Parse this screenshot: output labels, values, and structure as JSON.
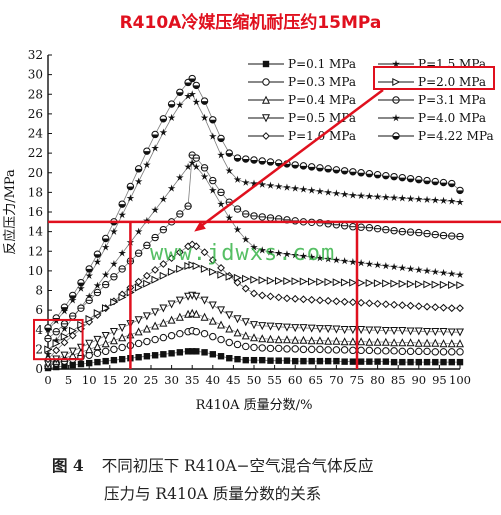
{
  "page": {
    "title": "R410A冷媒压缩机耐压约15MPa",
    "watermark": "www.jdwxs.com",
    "caption_number": "图 4",
    "caption_line1": "不同初压下 R410A−空气混合气体反应",
    "caption_line2": "压力与 R410A 质量分数的关系"
  },
  "colors": {
    "annotation": "#e0101e",
    "watermark": "#39b54a",
    "series": "#111111"
  },
  "chart_data": {
    "type": "line",
    "xlabel": "R410A 质量分数/%",
    "ylabel": "反应压力/MPa",
    "xlim": [
      0,
      100
    ],
    "ylim": [
      0,
      32
    ],
    "xticks": [
      0,
      5,
      10,
      15,
      20,
      25,
      30,
      35,
      40,
      45,
      50,
      55,
      60,
      65,
      70,
      75,
      80,
      85,
      90,
      95,
      100
    ],
    "yticks": [
      0,
      2,
      4,
      6,
      8,
      10,
      12,
      14,
      16,
      18,
      20,
      22,
      24,
      26,
      28,
      30,
      32
    ],
    "x": [
      0,
      2,
      4,
      6,
      8,
      10,
      12,
      14,
      16,
      18,
      20,
      22,
      24,
      26,
      28,
      30,
      32,
      34,
      35,
      36,
      38,
      40,
      42,
      44,
      46,
      48,
      50,
      52,
      54,
      56,
      58,
      60,
      62,
      64,
      66,
      68,
      70,
      72,
      74,
      76,
      78,
      80,
      82,
      84,
      86,
      88,
      90,
      92,
      94,
      96,
      98,
      100
    ],
    "series": [
      {
        "name": "P=0.1 MPa",
        "marker": "square-filled",
        "values": [
          0.1,
          0.2,
          0.3,
          0.4,
          0.5,
          0.6,
          0.7,
          0.8,
          0.9,
          1.0,
          1.1,
          1.2,
          1.3,
          1.4,
          1.5,
          1.6,
          1.7,
          1.8,
          1.8,
          1.8,
          1.7,
          1.5,
          1.3,
          1.1,
          1.0,
          0.9,
          0.9,
          0.9,
          0.85,
          0.85,
          0.85,
          0.8,
          0.8,
          0.8,
          0.8,
          0.8,
          0.8,
          0.75,
          0.75,
          0.75,
          0.75,
          0.75,
          0.75,
          0.7,
          0.7,
          0.7,
          0.7,
          0.7,
          0.7,
          0.7,
          0.7,
          0.7
        ]
      },
      {
        "name": "P=0.3 MPa",
        "marker": "circle-open",
        "values": [
          0.3,
          0.6,
          0.8,
          1.0,
          1.2,
          1.4,
          1.6,
          1.8,
          2.0,
          2.2,
          2.4,
          2.6,
          2.8,
          3.0,
          3.2,
          3.4,
          3.6,
          3.8,
          3.9,
          3.8,
          3.6,
          3.3,
          3.0,
          2.7,
          2.5,
          2.3,
          2.2,
          2.15,
          2.1,
          2.1,
          2.05,
          2.05,
          2.0,
          2.0,
          2.0,
          1.95,
          1.95,
          1.95,
          1.9,
          1.9,
          1.9,
          1.85,
          1.85,
          1.85,
          1.8,
          1.8,
          1.8,
          1.8,
          1.75,
          1.75,
          1.75,
          1.75
        ]
      },
      {
        "name": "P=0.4 MPa",
        "marker": "triangle-open",
        "values": [
          0.4,
          0.8,
          1.1,
          1.4,
          1.7,
          2.0,
          2.3,
          2.6,
          2.9,
          3.2,
          3.5,
          3.8,
          4.1,
          4.4,
          4.7,
          5.0,
          5.3,
          5.6,
          5.7,
          5.6,
          5.3,
          4.9,
          4.5,
          4.1,
          3.7,
          3.4,
          3.2,
          3.1,
          3.05,
          3.0,
          3.0,
          2.95,
          2.95,
          2.9,
          2.9,
          2.85,
          2.85,
          2.8,
          2.8,
          2.8,
          2.75,
          2.75,
          2.75,
          2.7,
          2.7,
          2.7,
          2.65,
          2.65,
          2.65,
          2.6,
          2.6,
          2.6
        ]
      },
      {
        "name": "P=0.5 MPa",
        "marker": "triangle-down-open",
        "values": [
          0.5,
          1.0,
          1.4,
          1.8,
          2.2,
          2.6,
          3.0,
          3.4,
          3.8,
          4.2,
          4.6,
          5.0,
          5.4,
          5.8,
          6.2,
          6.6,
          7.0,
          7.4,
          7.5,
          7.4,
          7.0,
          6.5,
          6.0,
          5.5,
          5.1,
          4.8,
          4.5,
          4.4,
          4.35,
          4.3,
          4.25,
          4.2,
          4.2,
          4.15,
          4.1,
          4.1,
          4.05,
          4.0,
          4.0,
          4.0,
          3.95,
          3.95,
          3.9,
          3.9,
          3.9,
          3.85,
          3.85,
          3.8,
          3.8,
          3.8,
          3.75,
          3.75
        ]
      },
      {
        "name": "P=1.0 MPa",
        "marker": "diamond-open",
        "values": [
          1.0,
          1.9,
          2.7,
          3.4,
          4.1,
          4.8,
          5.5,
          6.2,
          6.9,
          7.6,
          8.3,
          8.9,
          9.5,
          10.1,
          10.7,
          11.3,
          11.9,
          12.5,
          12.7,
          12.5,
          11.9,
          11.1,
          10.3,
          9.5,
          8.8,
          8.2,
          7.7,
          7.5,
          7.4,
          7.3,
          7.2,
          7.15,
          7.1,
          7.05,
          7.0,
          6.95,
          6.9,
          6.85,
          6.8,
          6.75,
          6.7,
          6.65,
          6.6,
          6.55,
          6.5,
          6.45,
          6.4,
          6.35,
          6.3,
          6.25,
          6.2,
          6.2
        ]
      },
      {
        "name": "P=1.5 MPa",
        "marker": "star-filled",
        "values": [
          1.5,
          2.9,
          4.1,
          5.2,
          6.3,
          7.4,
          8.5,
          9.6,
          10.7,
          11.8,
          12.9,
          14.0,
          15.1,
          16.2,
          17.3,
          18.4,
          19.5,
          20.6,
          21.0,
          20.6,
          19.6,
          18.2,
          16.8,
          15.4,
          14.2,
          13.2,
          12.4,
          12.1,
          11.9,
          11.8,
          11.7,
          11.6,
          11.5,
          11.4,
          11.3,
          11.2,
          11.1,
          11.0,
          10.9,
          10.8,
          10.7,
          10.6,
          10.5,
          10.4,
          10.3,
          10.2,
          10.1,
          10.0,
          9.9,
          9.8,
          9.7,
          9.6
        ]
      },
      {
        "name": "P=2.0 MPa",
        "marker": "triangle-right-open",
        "values": [
          2.0,
          2.6,
          3.3,
          3.9,
          4.5,
          5.1,
          5.7,
          6.2,
          6.8,
          7.3,
          7.8,
          8.3,
          8.7,
          9.1,
          9.5,
          9.9,
          10.2,
          10.5,
          10.6,
          10.5,
          10.2,
          9.9,
          9.6,
          9.4,
          9.3,
          9.2,
          9.1,
          9.05,
          9.0,
          8.98,
          8.96,
          8.94,
          8.92,
          8.9,
          8.88,
          8.86,
          8.84,
          8.82,
          8.8,
          8.78,
          8.76,
          8.74,
          8.72,
          8.7,
          8.68,
          8.66,
          8.64,
          8.62,
          8.6,
          8.58,
          8.56,
          8.55
        ]
      },
      {
        "name": "P=3.1 MPa",
        "marker": "circle-halfbar",
        "values": [
          3.1,
          3.8,
          4.6,
          5.4,
          6.2,
          7.0,
          7.8,
          8.6,
          9.4,
          10.2,
          11.0,
          11.8,
          12.6,
          13.4,
          14.2,
          15.0,
          15.8,
          16.6,
          21.8,
          21.5,
          20.5,
          19.2,
          18.0,
          17.0,
          16.3,
          15.8,
          15.6,
          15.5,
          15.4,
          15.3,
          15.2,
          15.1,
          15.0,
          14.95,
          14.9,
          14.8,
          14.7,
          14.6,
          14.5,
          14.45,
          14.4,
          14.3,
          14.2,
          14.1,
          14.0,
          13.95,
          13.9,
          13.8,
          13.7,
          13.6,
          13.55,
          13.5
        ]
      },
      {
        "name": "P=4.0 MPa",
        "marker": "star-filled",
        "values": [
          4.0,
          4.9,
          5.9,
          7.0,
          8.2,
          9.5,
          10.9,
          12.4,
          14.0,
          15.7,
          17.4,
          19.1,
          20.8,
          22.5,
          24.1,
          25.6,
          26.9,
          27.8,
          28.0,
          27.2,
          25.6,
          23.7,
          21.8,
          20.2,
          19.3,
          19.0,
          18.9,
          18.8,
          18.7,
          18.6,
          18.5,
          18.4,
          18.3,
          18.2,
          18.1,
          18.0,
          17.9,
          17.8,
          17.7,
          17.65,
          17.6,
          17.55,
          17.5,
          17.45,
          17.4,
          17.35,
          17.3,
          17.25,
          17.2,
          17.15,
          17.1,
          17.0
        ]
      },
      {
        "name": "P=4.22 MPa",
        "marker": "circle-halffilled",
        "values": [
          4.2,
          5.2,
          6.3,
          7.5,
          8.8,
          10.2,
          11.7,
          13.3,
          15.0,
          16.8,
          18.6,
          20.4,
          22.2,
          23.9,
          25.5,
          27.0,
          28.2,
          29.2,
          29.6,
          28.9,
          27.3,
          25.4,
          23.5,
          22.0,
          21.5,
          21.4,
          21.3,
          21.2,
          21.1,
          21.0,
          20.9,
          20.8,
          20.7,
          20.6,
          20.5,
          20.4,
          20.3,
          20.2,
          20.1,
          20.0,
          19.9,
          19.8,
          19.7,
          19.6,
          19.5,
          19.4,
          19.3,
          19.2,
          19.1,
          19.0,
          18.9,
          18.2
        ]
      }
    ],
    "legend": {
      "placement": "top-right",
      "highlighted": "P=2.0 MPa"
    },
    "annotations": {
      "limit_line_y": 15,
      "vertical_guides_x": [
        20,
        75
      ],
      "highlight_box_x": [
        0,
        5
      ],
      "highlight_box_y": [
        1,
        5
      ],
      "arrow_to": [
        35,
        14
      ]
    },
    "grid": false
  }
}
